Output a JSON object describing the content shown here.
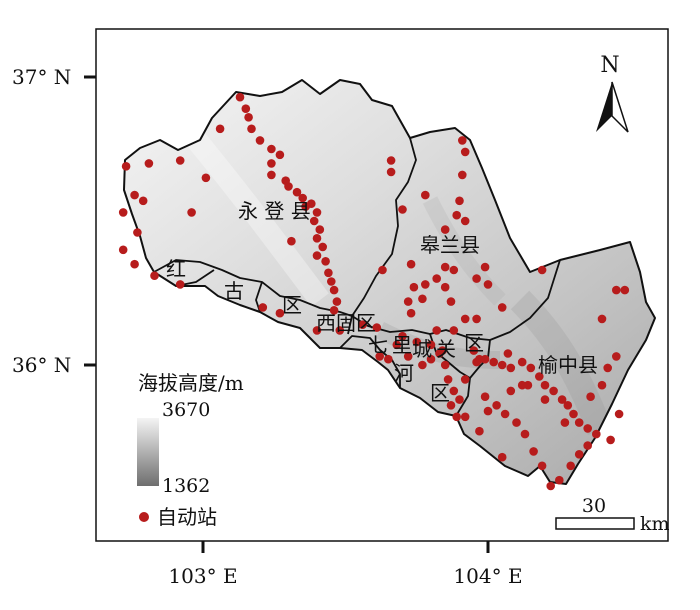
{
  "axes": {
    "y_ticks": [
      {
        "label": "37° N",
        "lat": 37.0
      },
      {
        "label": "36° N",
        "lat": 36.0
      }
    ],
    "x_ticks": [
      {
        "label": "103° E",
        "lon": 103.0
      },
      {
        "label": "104° E",
        "lon": 104.0
      }
    ]
  },
  "north_arrow": {
    "label": "N"
  },
  "districts": [
    {
      "id": "yongdeng",
      "label": "永 登 县"
    },
    {
      "id": "gaolan",
      "label": "皋兰县"
    },
    {
      "id": "yuzhong",
      "label": "榆中县"
    },
    {
      "id": "honggu",
      "label": "红 古 区"
    },
    {
      "id": "xigu",
      "label": "西固区"
    },
    {
      "id": "chengguan",
      "label": "城关区"
    },
    {
      "id": "qilihe",
      "label": "七里河区"
    }
  ],
  "legend": {
    "elevation_title": "海拔高度/m",
    "elevation_max": "3670",
    "elevation_min": "1362",
    "station_label": "自动站"
  },
  "scale_bar": {
    "value": "30",
    "unit": "km"
  },
  "colors": {
    "station": "#b71c1c",
    "boundary": "#111111",
    "relief_high": "#f4f4f4",
    "relief_low": "#6e6e6e"
  },
  "stations": [
    [
      102.73,
      36.69
    ],
    [
      102.81,
      36.7
    ],
    [
      102.76,
      36.59
    ],
    [
      102.79,
      36.57
    ],
    [
      102.72,
      36.53
    ],
    [
      102.77,
      36.46
    ],
    [
      102.72,
      36.4
    ],
    [
      102.76,
      36.35
    ],
    [
      102.83,
      36.31
    ],
    [
      102.92,
      36.28
    ],
    [
      102.92,
      36.71
    ],
    [
      103.01,
      36.65
    ],
    [
      102.96,
      36.53
    ],
    [
      103.06,
      36.82
    ],
    [
      103.13,
      36.93
    ],
    [
      103.15,
      36.89
    ],
    [
      103.16,
      36.86
    ],
    [
      103.17,
      36.82
    ],
    [
      103.2,
      36.78
    ],
    [
      103.24,
      36.75
    ],
    [
      103.27,
      36.73
    ],
    [
      103.24,
      36.7
    ],
    [
      103.24,
      36.66
    ],
    [
      103.29,
      36.64
    ],
    [
      103.3,
      36.62
    ],
    [
      103.33,
      36.6
    ],
    [
      103.35,
      36.58
    ],
    [
      103.38,
      36.56
    ],
    [
      103.4,
      36.53
    ],
    [
      103.39,
      36.5
    ],
    [
      103.41,
      36.47
    ],
    [
      103.4,
      36.44
    ],
    [
      103.42,
      36.41
    ],
    [
      103.4,
      36.38
    ],
    [
      103.43,
      36.36
    ],
    [
      103.44,
      36.32
    ],
    [
      103.45,
      36.29
    ],
    [
      103.46,
      36.26
    ],
    [
      103.47,
      36.22
    ],
    [
      103.46,
      36.19
    ],
    [
      103.36,
      36.55
    ],
    [
      103.31,
      36.43
    ],
    [
      103.27,
      36.18
    ],
    [
      103.21,
      36.2
    ],
    [
      103.4,
      36.12
    ],
    [
      103.48,
      36.12
    ],
    [
      103.56,
      36.14
    ],
    [
      103.61,
      36.13
    ],
    [
      103.66,
      36.71
    ],
    [
      103.66,
      36.67
    ],
    [
      103.63,
      36.33
    ],
    [
      103.7,
      36.54
    ],
    [
      103.73,
      36.35
    ],
    [
      103.78,
      36.59
    ],
    [
      103.78,
      36.28
    ],
    [
      103.85,
      36.47
    ],
    [
      103.85,
      36.34
    ],
    [
      103.85,
      36.27
    ],
    [
      103.9,
      36.57
    ],
    [
      103.89,
      36.52
    ],
    [
      103.92,
      36.5
    ],
    [
      103.91,
      36.66
    ],
    [
      103.96,
      36.3
    ],
    [
      103.99,
      36.34
    ],
    [
      104.0,
      36.28
    ],
    [
      104.05,
      36.2
    ],
    [
      103.92,
      36.16
    ],
    [
      103.97,
      36.02
    ],
    [
      103.77,
      36.23
    ],
    [
      103.87,
      36.22
    ],
    [
      103.92,
      36.74
    ],
    [
      103.91,
      36.78
    ],
    [
      103.72,
      36.22
    ],
    [
      103.73,
      36.18
    ],
    [
      103.82,
      36.12
    ],
    [
      103.84,
      36.05
    ],
    [
      103.88,
      36.12
    ],
    [
      103.7,
      36.1
    ],
    [
      103.68,
      36.07
    ],
    [
      103.62,
      36.03
    ],
    [
      103.65,
      36.02
    ],
    [
      103.75,
      36.08
    ],
    [
      103.72,
      36.03
    ],
    [
      103.77,
      36.0
    ],
    [
      103.8,
      36.02
    ],
    [
      103.8,
      36.07
    ],
    [
      103.83,
      36.04
    ],
    [
      103.85,
      36.0
    ],
    [
      103.86,
      35.95
    ],
    [
      103.88,
      35.91
    ],
    [
      103.87,
      35.86
    ],
    [
      103.89,
      35.82
    ],
    [
      103.92,
      35.82
    ],
    [
      103.9,
      35.88
    ],
    [
      103.92,
      35.95
    ],
    [
      103.95,
      36.05
    ],
    [
      103.96,
      36.01
    ],
    [
      103.99,
      36.02
    ],
    [
      104.02,
      36.01
    ],
    [
      104.05,
      36.0
    ],
    [
      104.07,
      36.04
    ],
    [
      104.08,
      35.99
    ],
    [
      104.12,
      36.01
    ],
    [
      104.15,
      35.99
    ],
    [
      104.18,
      35.96
    ],
    [
      104.2,
      35.93
    ],
    [
      104.23,
      35.91
    ],
    [
      104.26,
      35.88
    ],
    [
      104.28,
      35.86
    ],
    [
      104.3,
      35.83
    ],
    [
      104.32,
      35.8
    ],
    [
      104.35,
      35.78
    ],
    [
      104.38,
      35.76
    ],
    [
      104.35,
      35.72
    ],
    [
      104.32,
      35.69
    ],
    [
      104.29,
      35.65
    ],
    [
      104.25,
      35.6
    ],
    [
      104.22,
      35.58
    ],
    [
      104.19,
      35.65
    ],
    [
      104.16,
      35.7
    ],
    [
      104.13,
      35.76
    ],
    [
      104.1,
      35.8
    ],
    [
      104.06,
      35.83
    ],
    [
      104.03,
      35.86
    ],
    [
      103.99,
      35.89
    ],
    [
      104.0,
      35.84
    ],
    [
      103.97,
      35.77
    ],
    [
      104.08,
      35.91
    ],
    [
      104.14,
      35.93
    ],
    [
      104.2,
      35.88
    ],
    [
      104.27,
      35.8
    ],
    [
      104.36,
      35.89
    ],
    [
      104.4,
      35.93
    ],
    [
      104.42,
      35.99
    ],
    [
      104.45,
      36.03
    ],
    [
      104.4,
      36.16
    ],
    [
      104.46,
      35.83
    ],
    [
      104.43,
      35.74
    ],
    [
      104.45,
      36.26
    ],
    [
      104.48,
      36.26
    ],
    [
      104.19,
      36.33
    ],
    [
      104.12,
      35.93
    ],
    [
      104.05,
      35.68
    ],
    [
      103.96,
      36.16
    ],
    [
      103.74,
      36.27
    ],
    [
      103.82,
      36.3
    ],
    [
      103.88,
      36.33
    ]
  ]
}
